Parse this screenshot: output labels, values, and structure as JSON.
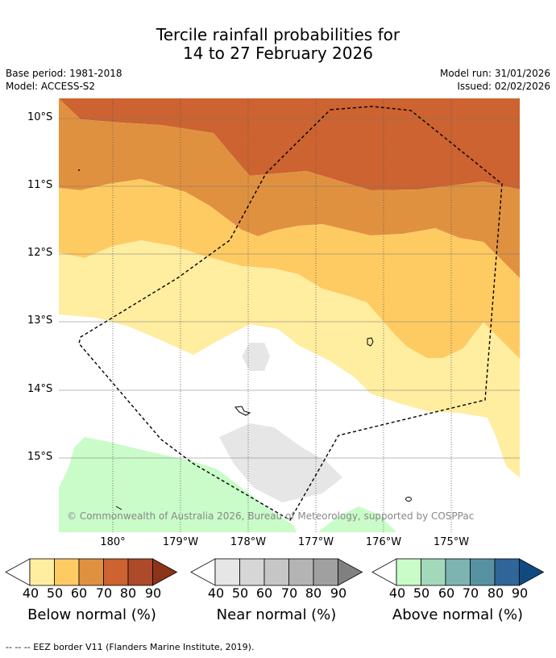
{
  "title": {
    "line1": "Tercile rainfall probabilities for",
    "line2": "14 to 27 February 2026"
  },
  "meta": {
    "base_period": "Base period: 1981-2018",
    "model": "Model: ACCESS-S2",
    "model_run": "Model run: 31/01/2026",
    "issued": "Issued: 02/02/2026"
  },
  "axes": {
    "lat_labels": [
      "10°S",
      "11°S",
      "12°S",
      "13°S",
      "14°S",
      "15°S"
    ],
    "lon_labels": [
      "180°",
      "179°W",
      "178°W",
      "177°W",
      "176°W",
      "175°W"
    ]
  },
  "copyright": "© Commonwealth of Australia 2026, Bureau of Meteorology, supported by COSPPac",
  "colorbars": [
    {
      "name": "Below normal (%)",
      "ticks": [
        "40",
        "50",
        "60",
        "70",
        "80",
        "90"
      ],
      "colors": [
        "#ffeda0",
        "#fecb63",
        "#e0913f",
        "#cc6330",
        "#ad4a2a",
        "#8c3418"
      ]
    },
    {
      "name": "Near normal (%)",
      "ticks": [
        "40",
        "50",
        "60",
        "70",
        "80",
        "90"
      ],
      "colors": [
        "#e6e6e6",
        "#d6d6d6",
        "#c6c6c6",
        "#b4b4b4",
        "#a0a0a0",
        "#808080"
      ]
    },
    {
      "name": "Above normal (%)",
      "ticks": [
        "40",
        "50",
        "60",
        "70",
        "80",
        "90"
      ],
      "colors": [
        "#c9fcc9",
        "#a3d9bb",
        "#7db4b1",
        "#5892a2",
        "#2f6699",
        "#114a80"
      ]
    }
  ],
  "footnote": "--  --  -- EEZ border V11 (Flanders Marine Institute, 2019)."
}
